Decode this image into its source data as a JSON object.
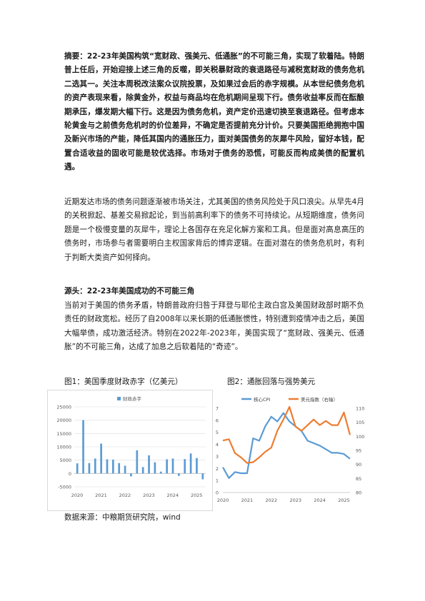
{
  "abstract": {
    "label": "摘要：",
    "text_part1": "22-23年美国构筑“宽财政、强美元、低通胀”的不可能三角，实现了软着陆。特朗普上任后，开始迎接上述三角的反噬，即关税暴财政的衰退路径与减税宽财政的债务危机二选其一。关注本周税改法案众议院投票，及如果过会后的赤字规模。从本世纪债务危机的资产表现来看，除黄金外，权益与商品均在危机期间呈现下行。",
    "text_part2": "债务收益率反而在酝酿期承压，爆发期大幅下行。这是因为债务危机，资产定价迅速切换至衰退路径。但考虑本轮黄金与之前债务危机时的价位差异，不确定是否提前充分计价。只要美国拒绝拥抱中国及新兴市场的产能，降低其国内的通胀压力，面对美国债务的灰犀牛风险，留好本钱，配置合适收益的固收可能是较优选择。市场对于债务的恐慌，可能反而构成美债的配置机遇。"
  },
  "intro": "近期发达市场的债务问题逐渐被市场关注，尤其美国的债务风险处于风口浪尖。从早先4月的关税掀起、基差交易掀起论，到当前高利率下的债务不可持续论。从短期维度，债务问题是一个极慢变量的灰犀牛，理论上各国存在充足化解方案和工具。但是面对高息高压的债务时，市场参与者需要明白主权国家背后的博弈逻辑。在面对潜在的债务危机时，有利于判断大类资产如何择向。",
  "section": {
    "heading": "源头：22-23年美国成功的不可能三角",
    "text": "当前对于美国的债务矛盾，特朗普政府归咎于拜登与耶伦主政白宫及美国财政部时期不负责任的财政宽松。经历了自2008年以来长期的低通胀惯性，特别遭到疫情冲击之后，美国大幅举债，成功激活经济。特别在2022年-2023年，美国实现了“宽财政、强美元、低通胀”的不可能三角，达成了加息之后软着陆的“奇迹”。"
  },
  "fig1": {
    "caption": "图1：美国季度财政赤字（亿美元）",
    "legend": "财政赤字",
    "color": "#5b9bd5"
  },
  "fig2": {
    "caption": "图2：通胀回落与强势美元",
    "legend_left": "核心CPI",
    "legend_right": "美元指数（右轴）",
    "color_left": "#5b9bd5",
    "color_right": "#ed7d31"
  },
  "source": "数据来源：中粮期货研究院，wind",
  "chart_data": [
    {
      "type": "bar",
      "title": "图1：美国季度财政赤字（亿美元）",
      "series": [
        {
          "name": "财政赤字",
          "values": [
            3800,
            20000,
            3900,
            5600,
            11200,
            5300,
            5200,
            3900,
            2900,
            -1100,
            8700,
            2400,
            6800,
            4200,
            700,
            5300,
            5600,
            -900,
            5400,
            7500,
            5800,
            -2200
          ]
        }
      ],
      "ylim": [
        -5000,
        25000
      ],
      "yticks": [
        -5000,
        0,
        5000,
        10000,
        15000,
        20000,
        25000
      ],
      "xticks": [
        "2020",
        "2021",
        "2022",
        "2023",
        "2024",
        "2025"
      ],
      "xlabel": "",
      "ylabel": ""
    },
    {
      "type": "line",
      "title": "图2：通胀回落与强势美元",
      "x": [
        "2020-01",
        "2020-04",
        "2020-07",
        "2020-10",
        "2021-01",
        "2021-04",
        "2021-07",
        "2021-10",
        "2022-01",
        "2022-04",
        "2022-07",
        "2022-10",
        "2023-01",
        "2023-04",
        "2023-07",
        "2023-10",
        "2024-01",
        "2024-04",
        "2024-07",
        "2024-10",
        "2025-01",
        "2025-04"
      ],
      "series": [
        {
          "name": "核心CPI",
          "axis": "left",
          "values": [
            2.1,
            1.2,
            1.7,
            1.6,
            1.6,
            4.5,
            4.3,
            5.5,
            6.3,
            5.9,
            6.6,
            5.9,
            5.5,
            5.1,
            4.3,
            4.1,
            3.9,
            3.6,
            3.3,
            3.3,
            3.2,
            2.8
          ]
        },
        {
          "name": "美元指数（右轴）",
          "axis": "right",
          "values": [
            98.5,
            99.0,
            94.0,
            92.5,
            90.5,
            90.8,
            92.5,
            94.5,
            96.0,
            102.0,
            106.0,
            110.5,
            103.5,
            102.0,
            104.0,
            106.0,
            104.0,
            105.5,
            104.0,
            104.0,
            108.5,
            100.5
          ]
        }
      ],
      "ylim_left": [
        0,
        7
      ],
      "yticks_left": [
        0,
        1,
        2,
        3,
        4,
        5,
        6,
        7
      ],
      "ylim_right": [
        80,
        110
      ],
      "yticks_right": [
        80,
        85,
        90,
        95,
        100,
        105,
        110
      ],
      "xticks": [
        "2020",
        "2021",
        "2022",
        "2023",
        "2024",
        "2025"
      ]
    }
  ]
}
